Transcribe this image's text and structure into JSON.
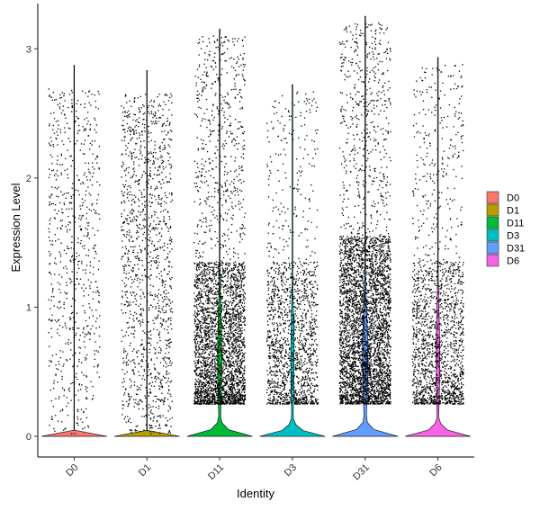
{
  "chart_data": {
    "type": "violin",
    "title": "",
    "xlabel": "Identity",
    "ylabel": "Expression Level",
    "ylim": [
      -0.16,
      3.35
    ],
    "yticks": [
      0,
      1,
      2,
      3
    ],
    "categories": [
      "D0",
      "D1",
      "D11",
      "D3",
      "D31",
      "D6"
    ],
    "colors": [
      "#F8766D",
      "#B79F00",
      "#00BA38",
      "#00BFC4",
      "#619CFF",
      "#F564E3"
    ],
    "legend": {
      "position": "right",
      "entries": [
        "D0",
        "D1",
        "D11",
        "D3",
        "D31",
        "D6"
      ]
    },
    "grid": false,
    "series": [
      {
        "name": "D0",
        "max": 2.87,
        "points": 700,
        "zero_fraction": 0.97,
        "spread": "uniform"
      },
      {
        "name": "D1",
        "max": 2.83,
        "points": 1300,
        "zero_fraction": 0.95,
        "spread": "uniform"
      },
      {
        "name": "D11",
        "max": 3.15,
        "points": 3400,
        "zero_fraction": 0.6,
        "spread": "dense-low"
      },
      {
        "name": "D3",
        "max": 2.72,
        "points": 1600,
        "zero_fraction": 0.7,
        "spread": "dense-low"
      },
      {
        "name": "D31",
        "max": 3.25,
        "points": 4200,
        "zero_fraction": 0.5,
        "spread": "dense-mid"
      },
      {
        "name": "D6",
        "max": 2.93,
        "points": 1800,
        "zero_fraction": 0.65,
        "spread": "dense-low"
      }
    ]
  }
}
